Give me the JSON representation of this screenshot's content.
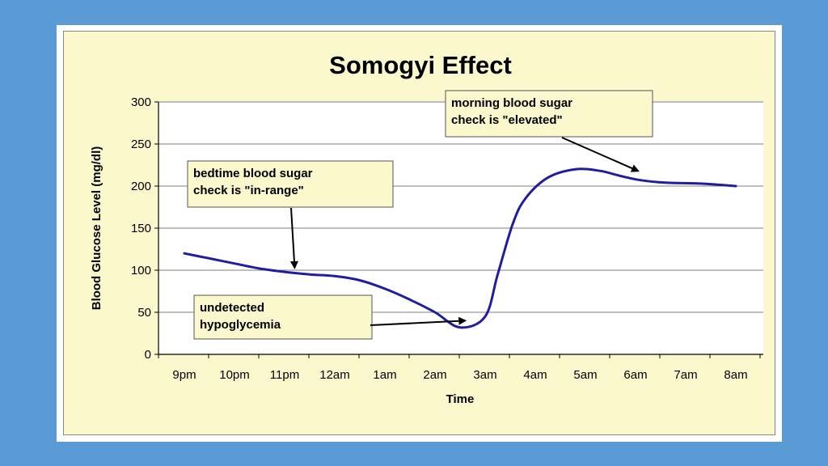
{
  "chart_data": {
    "type": "line",
    "title": "Somogyi Effect",
    "xlabel": "Time",
    "ylabel": "Blood Glucose Level (mg/dl)",
    "categories": [
      "9pm",
      "10pm",
      "11pm",
      "12am",
      "1am",
      "2am",
      "3am",
      "4am",
      "5am",
      "6am",
      "7am",
      "8am"
    ],
    "ylim": [
      0,
      300
    ],
    "yticks": [
      0,
      50,
      100,
      150,
      200,
      250,
      300
    ],
    "grid": true,
    "series": [
      {
        "x": [
          0,
          0.5,
          1,
          1.5,
          2,
          2.5,
          3,
          3.5,
          4,
          4.5,
          5,
          5.5,
          6,
          6.25,
          6.55,
          6.8,
          7.25,
          7.8,
          8.3,
          8.7,
          9.1,
          9.6,
          10.3,
          11
        ],
        "values": [
          120,
          114,
          108,
          102,
          98,
          95,
          93,
          88,
          78,
          65,
          50,
          32,
          45,
          95,
          155,
          185,
          210,
          220,
          218,
          212,
          207,
          204,
          203,
          200
        ],
        "color": "#1f1f9e"
      }
    ],
    "annotations": [
      {
        "lines": [
          "bedtime blood sugar",
          "check is \"in-range\""
        ],
        "arrow_to": [
          2.2,
          103
        ]
      },
      {
        "lines": [
          "morning blood sugar",
          "check is \"elevated\""
        ],
        "arrow_to": [
          9.05,
          218
        ]
      },
      {
        "lines": [
          "undetected",
          "hypoglycemia"
        ],
        "arrow_to": [
          5.6,
          40
        ]
      }
    ]
  }
}
